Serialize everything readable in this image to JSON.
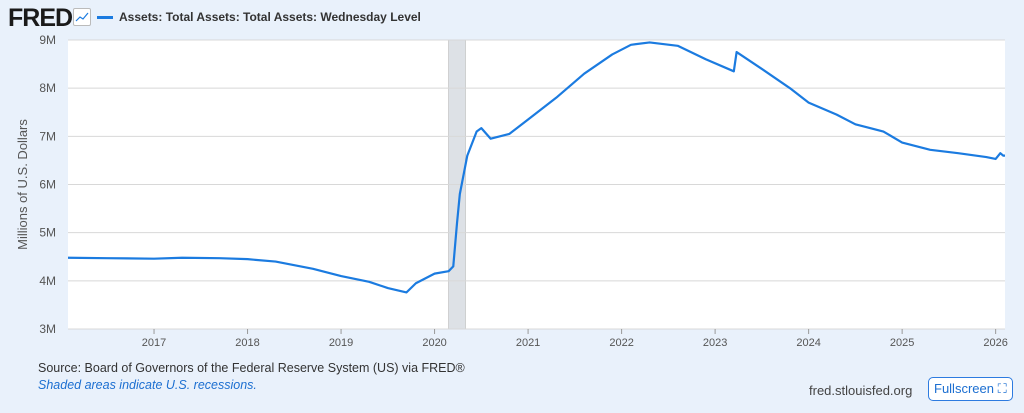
{
  "header": {
    "logo": "FRED",
    "legend": "Assets: Total Assets: Total Assets: Wednesday Level"
  },
  "footer": {
    "source": "Source: Board of Governors of the Federal Reserve System (US) via FRED®",
    "note": "Shaded areas indicate U.S. recessions.",
    "site": "fred.stlouisfed.org",
    "fullscreen": "Fullscreen ⛶"
  },
  "colors": {
    "line": "#1b7be0",
    "recession": "#dde1e6"
  },
  "chart_data": {
    "type": "line",
    "title": "",
    "xlabel": "",
    "ylabel": "Millions of U.S. Dollars",
    "xlim": [
      2016.08,
      2026.1
    ],
    "ylim": [
      3,
      9
    ],
    "yticks": [
      3,
      4,
      5,
      6,
      7,
      8,
      9
    ],
    "ytick_labels": [
      "3M",
      "4M",
      "5M",
      "6M",
      "7M",
      "8M",
      "9M"
    ],
    "xticks": [
      2017,
      2018,
      2019,
      2020,
      2021,
      2022,
      2023,
      2024,
      2025,
      2026
    ],
    "recessions": [
      [
        2020.15,
        2020.33
      ]
    ],
    "series": [
      {
        "name": "Assets: Total Assets: Total Assets: Wednesday Level",
        "x": [
          2016.08,
          2016.5,
          2017.0,
          2017.3,
          2017.7,
          2018.0,
          2018.3,
          2018.7,
          2019.0,
          2019.3,
          2019.5,
          2019.7,
          2019.8,
          2020.0,
          2020.15,
          2020.2,
          2020.24,
          2020.27,
          2020.35,
          2020.45,
          2020.5,
          2020.6,
          2020.8,
          2021.0,
          2021.3,
          2021.6,
          2021.9,
          2022.1,
          2022.3,
          2022.6,
          2022.9,
          2023.2,
          2023.23,
          2023.5,
          2023.8,
          2024.0,
          2024.3,
          2024.5,
          2024.8,
          2025.0,
          2025.3,
          2025.6,
          2025.9,
          2026.0,
          2026.05,
          2026.08,
          2026.1
        ],
        "y": [
          4.48,
          4.47,
          4.46,
          4.48,
          4.47,
          4.45,
          4.4,
          4.25,
          4.1,
          3.98,
          3.85,
          3.76,
          3.95,
          4.15,
          4.2,
          4.3,
          5.2,
          5.8,
          6.6,
          7.1,
          7.17,
          6.95,
          7.05,
          7.35,
          7.8,
          8.3,
          8.7,
          8.9,
          8.95,
          8.88,
          8.6,
          8.35,
          8.75,
          8.4,
          8.0,
          7.7,
          7.45,
          7.25,
          7.1,
          6.87,
          6.72,
          6.65,
          6.57,
          6.53,
          6.65,
          6.6,
          6.6
        ]
      }
    ]
  }
}
